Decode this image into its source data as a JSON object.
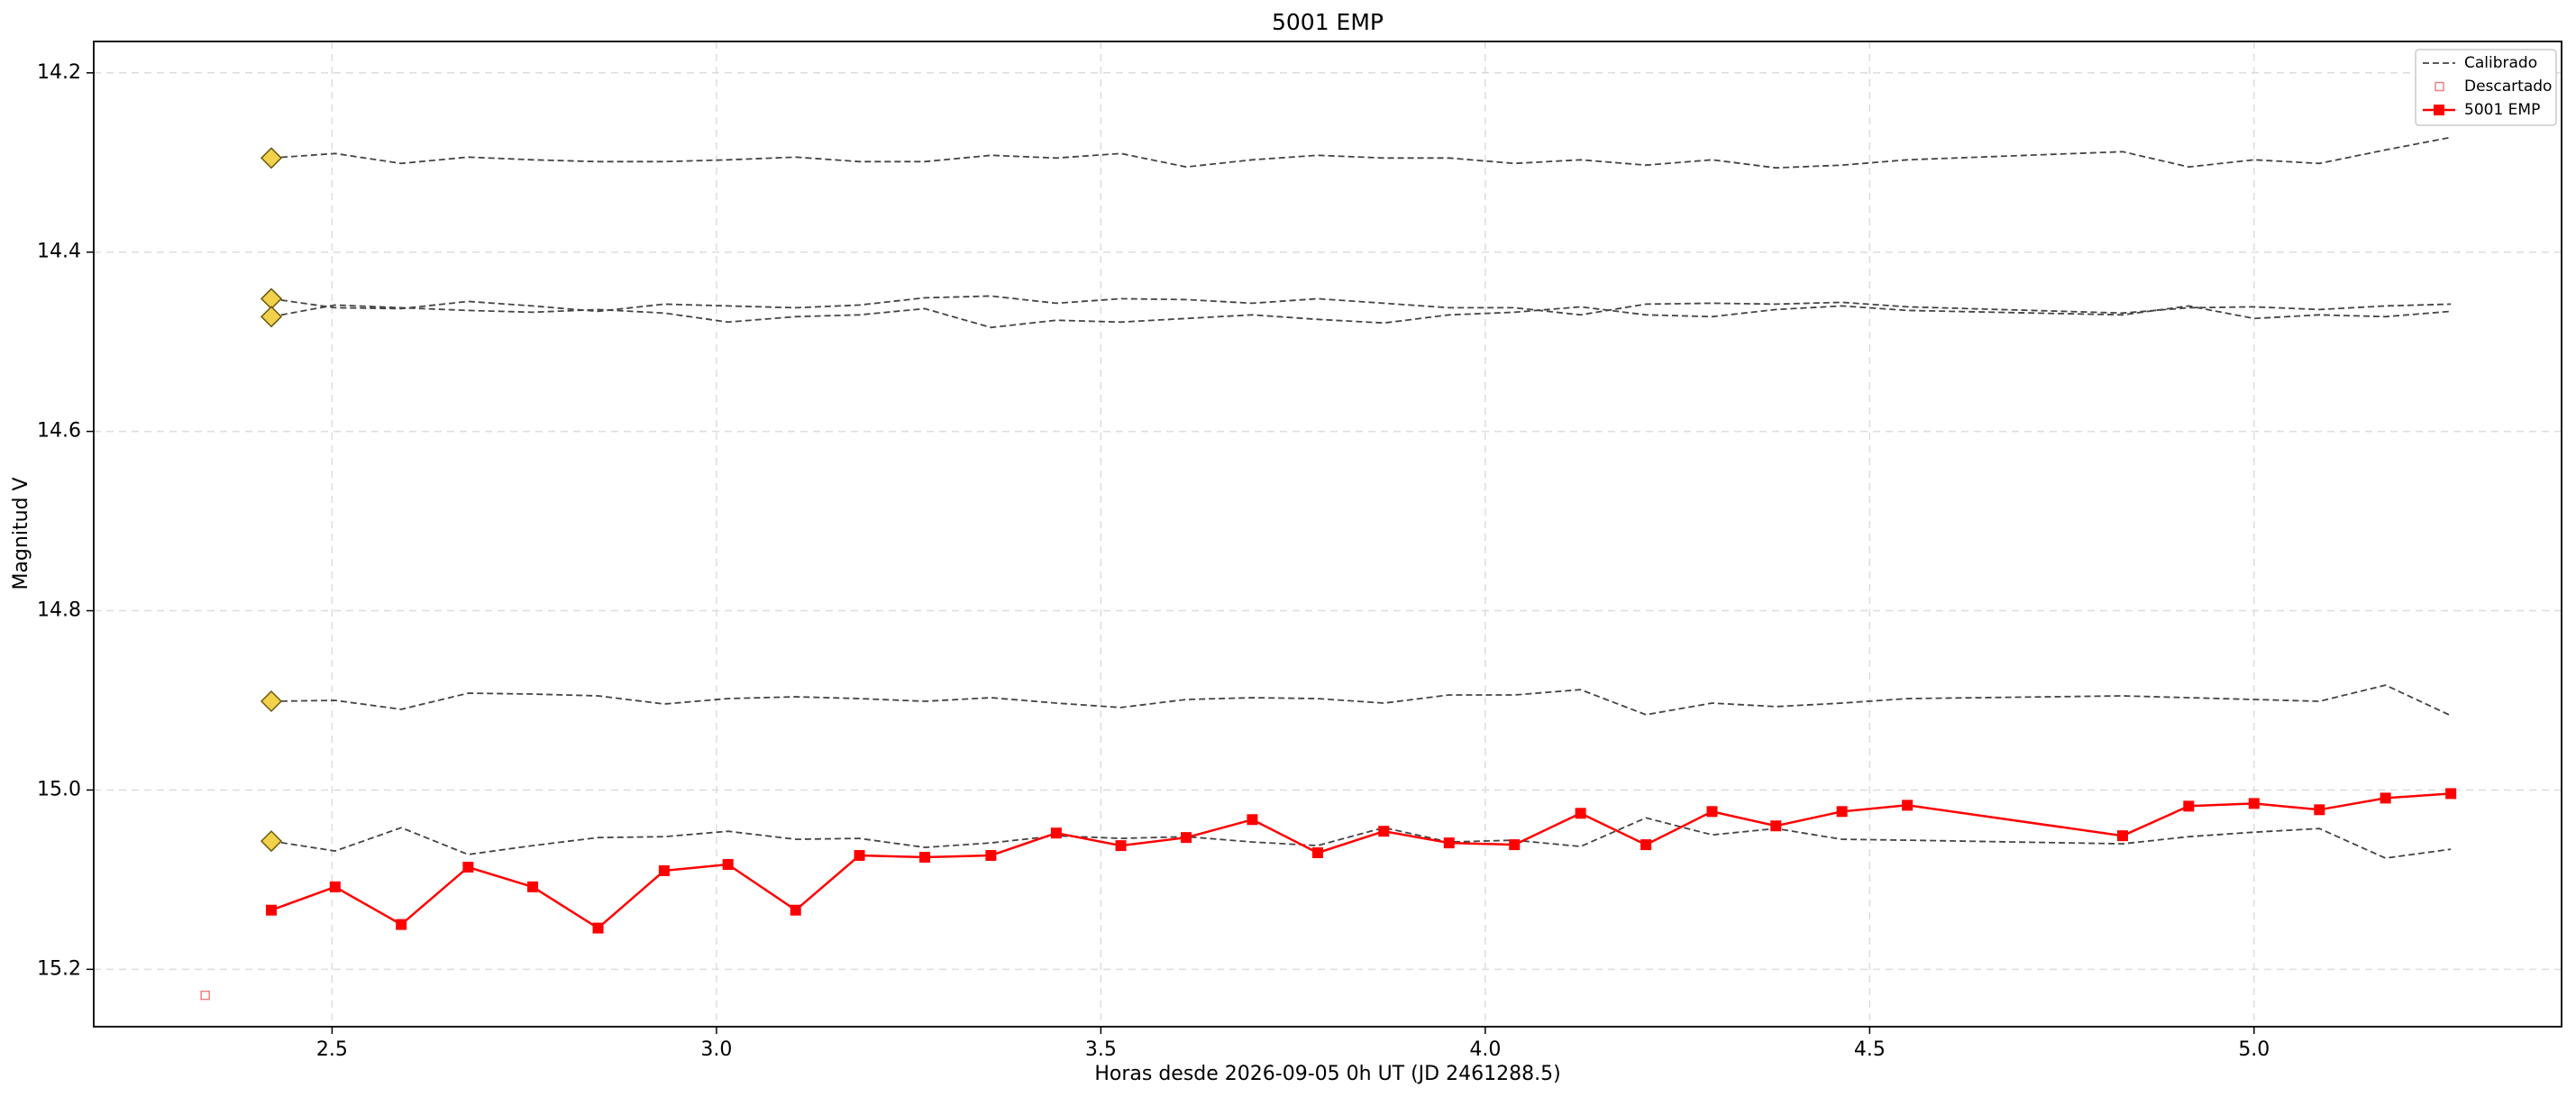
{
  "chart_data": {
    "type": "line",
    "title": "5001 EMP",
    "xlabel": "Horas desde 2026-09-05 0h UT (JD 2461288.5)",
    "ylabel": "Magnitud V",
    "xlim": [
      2.19,
      5.4
    ],
    "ylim": [
      14.165,
      15.264
    ],
    "y_inverted": true,
    "grid": true,
    "legend": "upper right",
    "xticks": [
      2.5,
      {
        "value": 3,
        "label": "3.0"
      },
      3.5,
      {
        "value": 4,
        "label": "4.0"
      },
      4.5,
      {
        "value": 5,
        "label": "5.0"
      }
    ],
    "yticks": [
      14.2,
      14.4,
      14.6,
      14.8,
      {
        "value": 15,
        "label": "15.0"
      },
      15.2
    ],
    "x": [
      2.421,
      2.504,
      2.59,
      2.677,
      2.761,
      2.846,
      2.932,
      3.015,
      3.103,
      3.186,
      3.271,
      3.357,
      3.442,
      3.526,
      3.611,
      3.697,
      3.782,
      3.868,
      3.953,
      4.038,
      4.124,
      4.209,
      4.295,
      4.378,
      4.464,
      4.549,
      4.829,
      4.915,
      5.0,
      5.085,
      5.171,
      5.256
    ],
    "calibrated": {
      "name": "Calibrado",
      "color": "#444444",
      "marker_color": "#f2d14b",
      "lines": [
        [
          14.295,
          14.29,
          14.301,
          14.294,
          14.297,
          14.299,
          14.299,
          14.297,
          14.294,
          14.299,
          14.299,
          14.292,
          14.295,
          14.29,
          14.305,
          14.297,
          14.292,
          14.295,
          14.295,
          14.301,
          14.297,
          14.303,
          14.297,
          14.306,
          14.303,
          14.297,
          14.288,
          14.305,
          14.297,
          14.301,
          14.286,
          14.272
        ],
        [
          14.452,
          14.462,
          14.463,
          14.455,
          14.46,
          14.466,
          14.458,
          14.46,
          14.462,
          14.459,
          14.451,
          14.449,
          14.457,
          14.452,
          14.453,
          14.457,
          14.452,
          14.457,
          14.462,
          14.462,
          14.47,
          14.458,
          14.457,
          14.458,
          14.456,
          14.461,
          14.468,
          14.462,
          14.461,
          14.464,
          14.46,
          14.458
        ],
        [
          14.472,
          14.459,
          14.462,
          14.465,
          14.467,
          14.464,
          14.468,
          14.478,
          14.472,
          14.47,
          14.463,
          14.484,
          14.476,
          14.478,
          14.474,
          14.47,
          14.475,
          14.479,
          14.47,
          14.467,
          14.461,
          14.47,
          14.472,
          14.464,
          14.46,
          14.465,
          14.47,
          14.46,
          14.474,
          14.47,
          14.472,
          14.466
        ],
        [
          14.901,
          14.9,
          14.91,
          14.892,
          14.893,
          14.895,
          14.904,
          14.898,
          14.896,
          14.898,
          14.901,
          14.897,
          14.903,
          14.908,
          14.899,
          14.897,
          14.898,
          14.903,
          14.894,
          14.894,
          14.888,
          14.916,
          14.903,
          14.907,
          14.903,
          14.898,
          14.895,
          14.897,
          14.899,
          14.901,
          14.883,
          14.917
        ],
        [
          15.057,
          15.068,
          15.042,
          15.072,
          15.062,
          15.053,
          15.052,
          15.046,
          15.055,
          15.054,
          15.064,
          15.059,
          15.051,
          15.054,
          15.052,
          15.058,
          15.062,
          15.042,
          15.058,
          15.056,
          15.063,
          15.031,
          15.05,
          15.043,
          15.055,
          15.056,
          15.06,
          15.052,
          15.047,
          15.043,
          15.076,
          15.066
        ]
      ]
    },
    "discarded": {
      "name": "Descartado",
      "color": "#f08080",
      "x": [
        2.335
      ],
      "values": [
        15.229
      ]
    },
    "target": {
      "name": "5001 EMP",
      "color": "#ff0000",
      "values": [
        15.134,
        15.108,
        15.15,
        15.086,
        15.108,
        15.154,
        15.09,
        15.083,
        15.134,
        15.073,
        15.075,
        15.073,
        15.048,
        15.062,
        15.053,
        15.033,
        15.07,
        15.046,
        15.059,
        15.061,
        15.026,
        15.061,
        15.024,
        15.04,
        15.024,
        15.017,
        15.051,
        15.018,
        15.015,
        15.022,
        15.009,
        15.004
      ]
    }
  }
}
